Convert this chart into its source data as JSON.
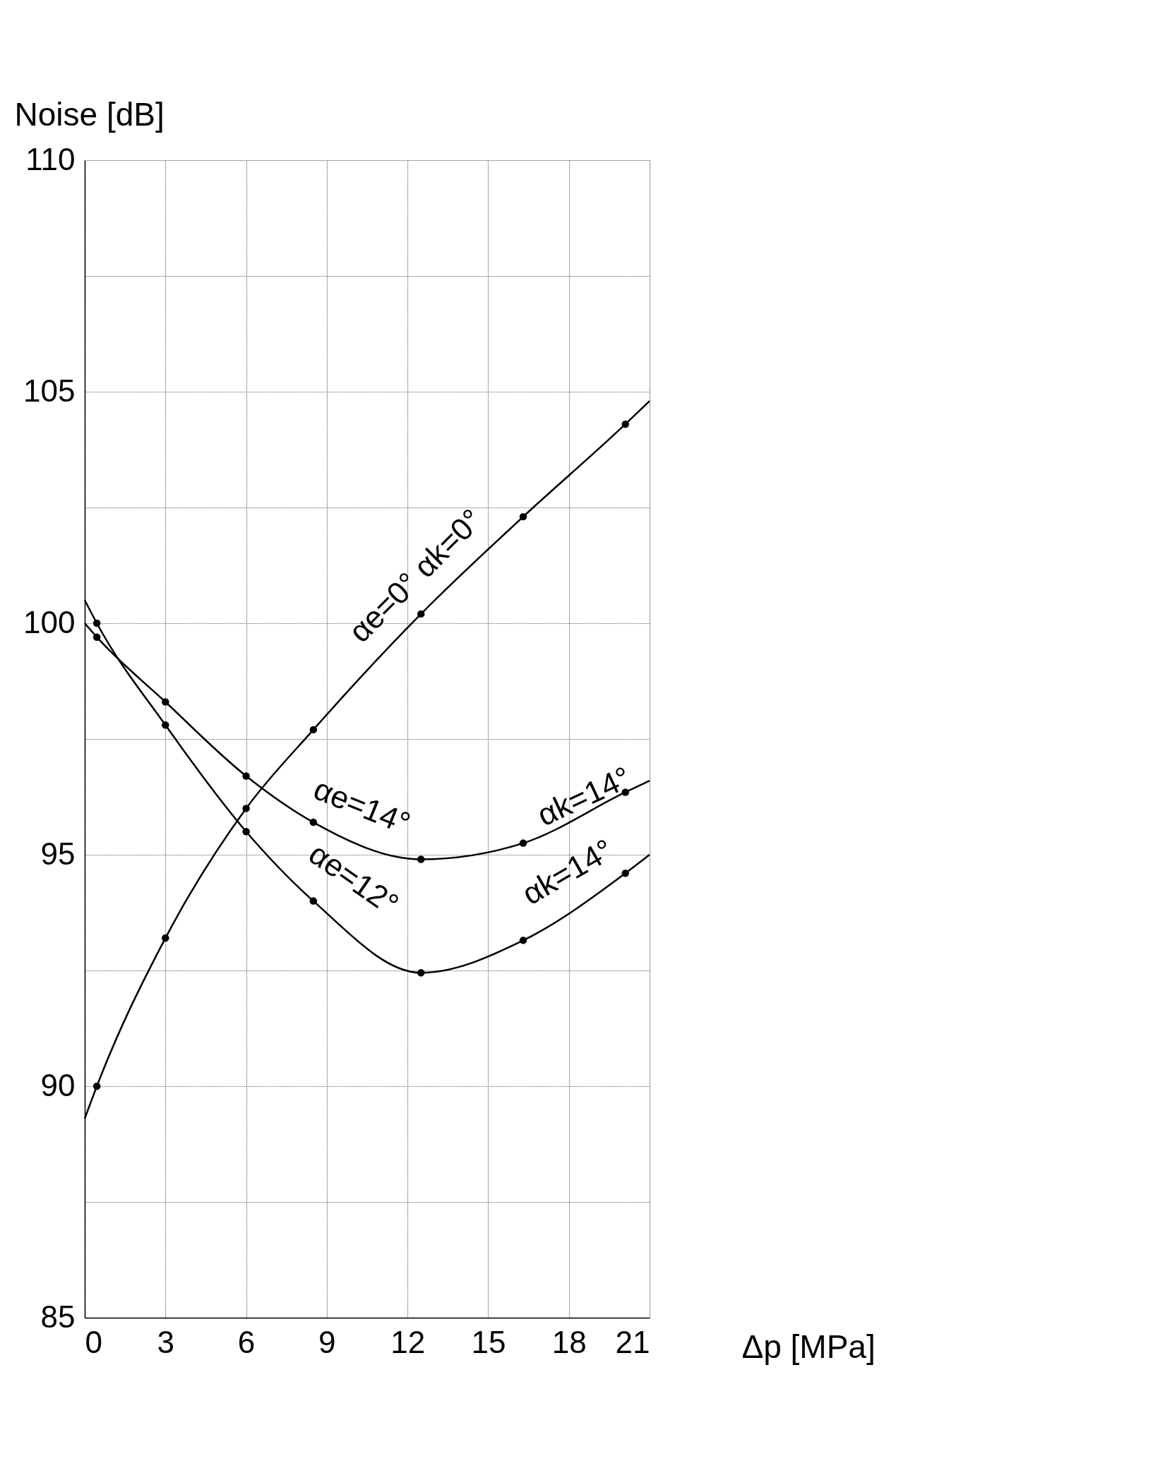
{
  "chart_data": {
    "type": "line",
    "xlabel": "Δp [MPa]",
    "ylabel": "Noise [dB]",
    "xlim": [
      0,
      21
    ],
    "xticks": [
      0,
      3,
      6,
      9,
      12,
      15,
      18,
      21
    ],
    "ylim": [
      85,
      110
    ],
    "yticks": [
      85,
      {
        "value": 87.5,
        "label": null
      },
      90,
      {
        "value": 92.5,
        "label": null
      },
      95,
      {
        "value": 97.5,
        "label": null
      },
      100,
      {
        "value": 102.5,
        "label": null
      },
      105,
      {
        "value": 107.5,
        "label": null
      },
      110
    ],
    "grid": true,
    "line_style": "solid",
    "series": [
      {
        "color": "#000000",
        "x": [
          0,
          0.45,
          3,
          6,
          8.5,
          12.5,
          16.3,
          20.1,
          21
        ],
        "values": [
          89.3,
          90.0,
          93.2,
          96.0,
          97.7,
          100.2,
          102.3,
          104.3,
          104.8
        ]
      },
      {
        "color": "#000000",
        "x": [
          0,
          0.45,
          3,
          6,
          8.5,
          12.5,
          16.3,
          20.1,
          21
        ],
        "values": [
          100.0,
          99.7,
          98.3,
          96.7,
          95.7,
          94.9,
          95.25,
          96.35,
          96.6
        ]
      },
      {
        "color": "#000000",
        "x": [
          0,
          0.45,
          3,
          6,
          8.5,
          12.5,
          16.3,
          20.1,
          21
        ],
        "values": [
          100.5,
          100.0,
          97.8,
          95.5,
          94.0,
          92.45,
          93.15,
          94.6,
          95.0
        ]
      },
      {
        "type": "scatter",
        "marker": "circle",
        "color": "#000000",
        "x": [
          0.45,
          3,
          6,
          8.5,
          12.5,
          16.3,
          20.1
        ],
        "values": [
          90.0,
          93.2,
          96.0,
          97.7,
          100.2,
          102.3,
          104.3
        ]
      },
      {
        "type": "scatter",
        "marker": "circle",
        "color": "#000000",
        "x": [
          0.45,
          3,
          6,
          8.5,
          12.5,
          16.3,
          20.1
        ],
        "values": [
          99.7,
          98.3,
          96.7,
          95.7,
          94.9,
          95.25,
          96.35
        ]
      },
      {
        "type": "scatter",
        "marker": "circle",
        "color": "#000000",
        "x": [
          0.45,
          3,
          6,
          8.5,
          12.5,
          16.3,
          20.1
        ],
        "values": [
          100.0,
          97.8,
          95.5,
          94.0,
          92.45,
          93.15,
          94.6
        ]
      }
    ],
    "annotations": [
      "αe=0° αk=0°",
      "αe=14°",
      "αk=14°",
      "αe=12°",
      "αk=14°"
    ]
  }
}
